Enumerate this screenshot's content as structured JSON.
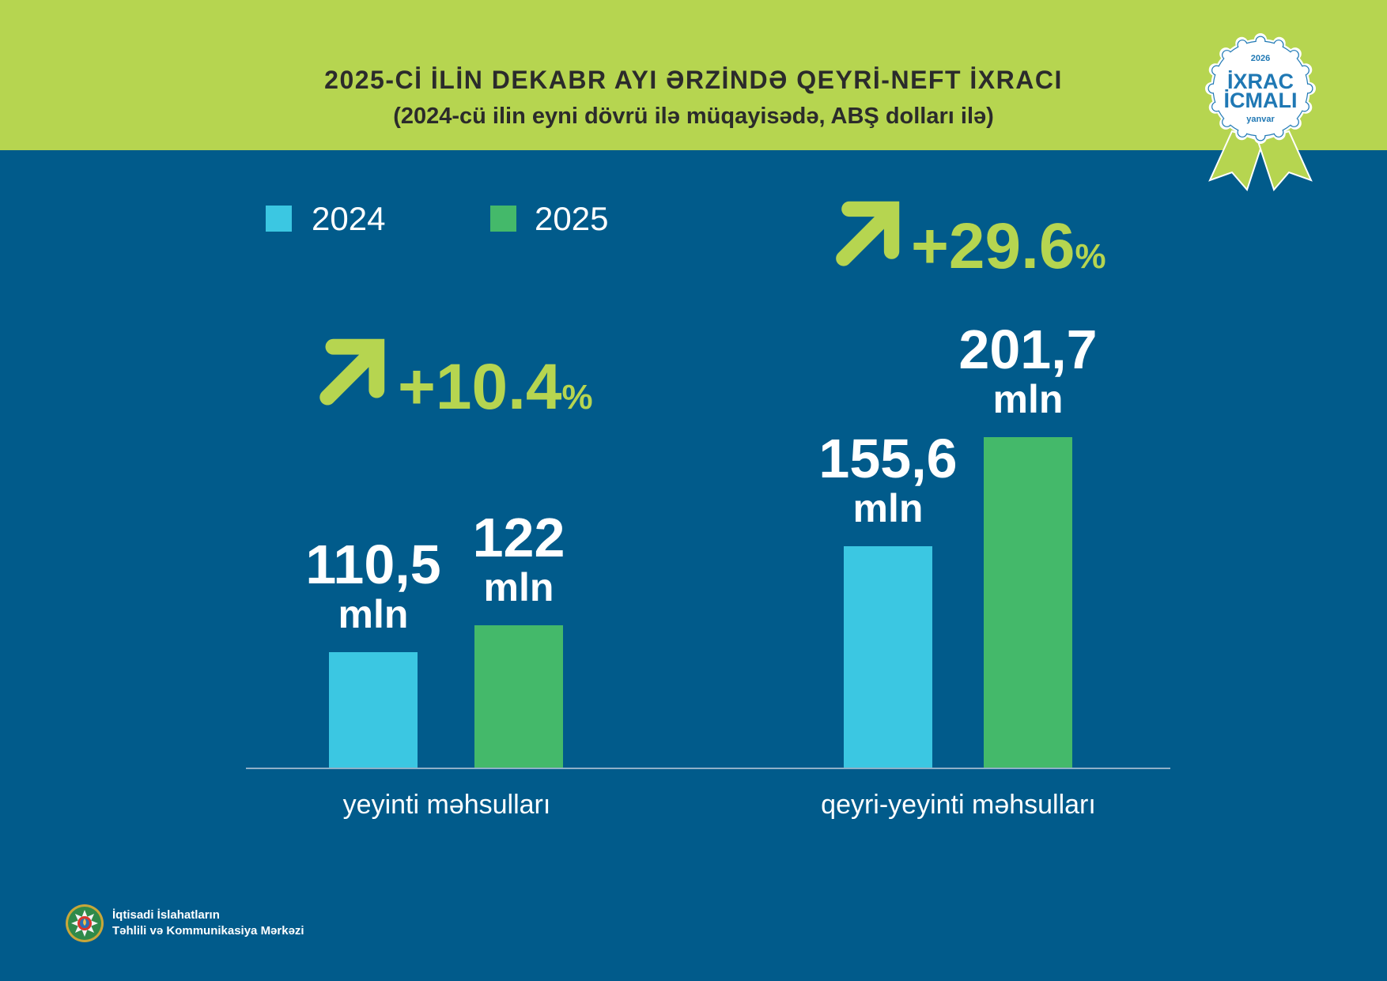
{
  "header": {
    "title": "2025-Cİ İLİN DEKABR AYI ƏRZİNDƏ QEYRİ-NEFT İXRACI",
    "subtitle": "(2024-cü ilin eyni dövrü ilə müqayisədə, ABŞ dolları ilə)"
  },
  "badge": {
    "year": "2026",
    "line1": "İXRAC",
    "line2": "İCMALI",
    "month": "yanvar",
    "icon": "award-ribbon-badge"
  },
  "colors": {
    "header_band": "#b6d550",
    "background": "#015b8b",
    "accent": "#b6d550",
    "title_text": "#2b2b2b",
    "badge_text": "#1f78b4"
  },
  "chart_data": {
    "type": "bar",
    "categories": [
      "yeyinti məhsulları",
      "qeyri-yeyinti məhsulları"
    ],
    "series": [
      {
        "name": "2024",
        "color": "#3bc7e2",
        "values": [
          110.5,
          155.6
        ],
        "labels": [
          "110,5",
          "155,6"
        ]
      },
      {
        "name": "2025",
        "color": "#44b96a",
        "values": [
          122,
          201.7
        ],
        "labels": [
          "122",
          "201,7"
        ]
      }
    ],
    "value_unit": "mln",
    "changes": [
      {
        "value": "+10.4",
        "unit": "%",
        "icon": "arrow-up-right-icon"
      },
      {
        "value": "+29.6",
        "unit": "%",
        "icon": "arrow-up-right-icon"
      }
    ],
    "legend": "top-left",
    "grid": false
  },
  "footer": {
    "org_line1": "İqtisadi İslahatların",
    "org_line2": "Təhlili və Kommunikasiya Mərkəzi",
    "logo_icon": "state-emblem-icon"
  }
}
